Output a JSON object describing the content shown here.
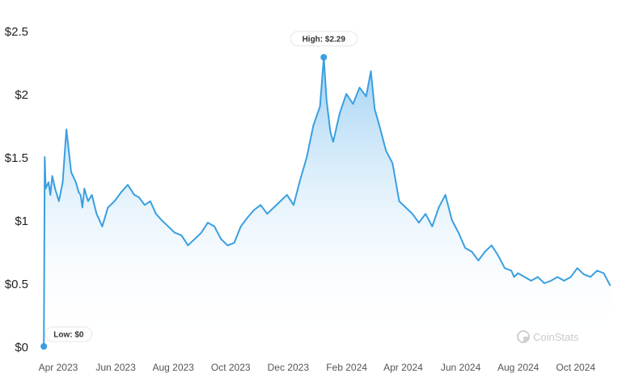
{
  "chart_data": {
    "type": "area",
    "title": "",
    "xlabel": "",
    "ylabel": "",
    "ylim": [
      0,
      2.5
    ],
    "y_ticks": [
      "$0",
      "$0.5",
      "$1",
      "$1.5",
      "$2",
      "$2.5"
    ],
    "x_ticks": [
      "Apr 2023",
      "Jun 2023",
      "Aug 2023",
      "Oct 2023",
      "Dec 2023",
      "Feb 2024",
      "Apr 2024",
      "Jun 2024",
      "Aug 2024",
      "Oct 2024"
    ],
    "grid": false,
    "legend": "none",
    "series": [
      {
        "x": [
          "2023-03-27",
          "2023-03-28",
          "2023-03-29",
          "2023-04-01",
          "2023-04-03",
          "2023-04-05",
          "2023-04-08",
          "2023-04-12",
          "2023-04-16",
          "2023-04-20",
          "2023-04-25",
          "2023-04-30",
          "2023-05-03",
          "2023-05-05",
          "2023-05-07",
          "2023-05-09",
          "2023-05-13",
          "2023-05-17",
          "2023-05-22",
          "2023-05-28",
          "2023-06-03",
          "2023-06-10",
          "2023-06-17",
          "2023-06-24",
          "2023-07-01",
          "2023-07-06",
          "2023-07-12",
          "2023-07-18",
          "2023-07-24",
          "2023-07-30",
          "2023-08-06",
          "2023-08-13",
          "2023-08-20",
          "2023-08-27",
          "2023-09-03",
          "2023-09-10",
          "2023-09-17",
          "2023-09-24",
          "2023-10-01",
          "2023-10-08",
          "2023-10-15",
          "2023-10-22",
          "2023-10-29",
          "2023-11-05",
          "2023-11-12",
          "2023-11-19",
          "2023-11-26",
          "2023-12-03",
          "2023-12-10",
          "2023-12-17",
          "2023-12-24",
          "2023-12-31",
          "2024-01-07",
          "2024-01-14",
          "2024-01-18",
          "2024-01-21",
          "2024-01-25",
          "2024-01-28",
          "2024-02-04",
          "2024-02-11",
          "2024-02-18",
          "2024-02-25",
          "2024-03-03",
          "2024-03-08",
          "2024-03-12",
          "2024-03-17",
          "2024-03-24",
          "2024-03-31",
          "2024-04-07",
          "2024-04-14",
          "2024-04-21",
          "2024-04-28",
          "2024-05-05",
          "2024-05-12",
          "2024-05-19",
          "2024-05-26",
          "2024-06-02",
          "2024-06-09",
          "2024-06-16",
          "2024-06-23",
          "2024-06-30",
          "2024-07-07",
          "2024-07-14",
          "2024-07-21",
          "2024-07-28",
          "2024-08-04",
          "2024-08-07",
          "2024-08-11",
          "2024-08-18",
          "2024-08-25",
          "2024-09-01",
          "2024-09-08",
          "2024-09-15",
          "2024-09-22",
          "2024-09-29",
          "2024-10-06",
          "2024-10-13",
          "2024-10-20",
          "2024-10-27",
          "2024-11-03",
          "2024-11-10",
          "2024-11-17"
        ],
        "y": [
          0,
          1.5,
          1.25,
          1.3,
          1.2,
          1.35,
          1.25,
          1.15,
          1.3,
          1.72,
          1.38,
          1.3,
          1.22,
          1.2,
          1.1,
          1.25,
          1.15,
          1.2,
          1.05,
          0.95,
          1.1,
          1.15,
          1.22,
          1.28,
          1.2,
          1.18,
          1.12,
          1.15,
          1.05,
          1.0,
          0.95,
          0.9,
          0.88,
          0.8,
          0.85,
          0.9,
          0.98,
          0.95,
          0.85,
          0.8,
          0.82,
          0.95,
          1.02,
          1.08,
          1.12,
          1.05,
          1.1,
          1.15,
          1.2,
          1.12,
          1.32,
          1.5,
          1.75,
          1.9,
          2.29,
          1.95,
          1.7,
          1.62,
          1.85,
          2.0,
          1.92,
          2.05,
          1.98,
          2.18,
          1.88,
          1.75,
          1.55,
          1.45,
          1.15,
          1.1,
          1.05,
          0.98,
          1.05,
          0.95,
          1.1,
          1.2,
          1.0,
          0.9,
          0.78,
          0.75,
          0.68,
          0.75,
          0.8,
          0.72,
          0.62,
          0.6,
          0.55,
          0.58,
          0.55,
          0.52,
          0.55,
          0.5,
          0.52,
          0.55,
          0.52,
          0.55,
          0.62,
          0.57,
          0.55,
          0.6,
          0.58,
          0.48
        ]
      }
    ],
    "annotations": [
      {
        "text": "High: $2.29",
        "x": "2024-01-18",
        "y": 2.29
      },
      {
        "text": "Low: $0",
        "x": "2023-03-27",
        "y": 0
      }
    ],
    "watermark": "CoinStats",
    "colors": {
      "line": "#3a9fe0",
      "fill_top": "#8cc8f2",
      "fill_bottom": "#ffffff",
      "axis_text": "#222222"
    }
  }
}
